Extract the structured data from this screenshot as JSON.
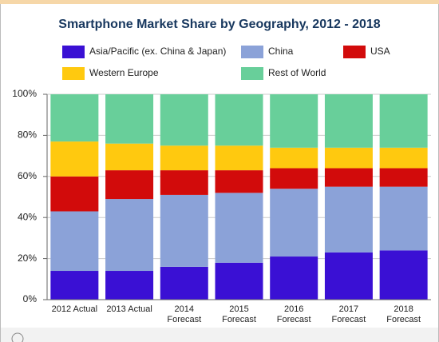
{
  "chart_data": {
    "type": "stacked-bar",
    "title": "Smartphone Market Share by Geography, 2012 - 2018",
    "categories": [
      "2012 Actual",
      "2013 Actual",
      "2014\nForecast",
      "2015\nForecast",
      "2016\nForecast",
      "2017\nForecast",
      "2018\nForecast"
    ],
    "series": [
      {
        "name": "Asia/Pacific (ex. China & Japan)",
        "color": "#3a10d4",
        "values": [
          14,
          14,
          16,
          18,
          21,
          23,
          24
        ]
      },
      {
        "name": "China",
        "color": "#8ba2d8",
        "values": [
          29,
          35,
          35,
          34,
          33,
          32,
          31
        ]
      },
      {
        "name": "USA",
        "color": "#d20b0b",
        "values": [
          17,
          14,
          12,
          11,
          10,
          9,
          9
        ]
      },
      {
        "name": "Western Europe",
        "color": "#ffc90f",
        "values": [
          17,
          13,
          12,
          12,
          10,
          10,
          10
        ]
      },
      {
        "name": "Rest of World",
        "color": "#68cf9a",
        "values": [
          23,
          24,
          25,
          25,
          26,
          26,
          26
        ]
      }
    ],
    "ylim": [
      0,
      100
    ],
    "yticks": [
      {
        "value": 0,
        "label": "0%"
      },
      {
        "value": 20,
        "label": "20%"
      },
      {
        "value": 40,
        "label": "40%"
      },
      {
        "value": 60,
        "label": "60%"
      },
      {
        "value": 80,
        "label": "80%"
      },
      {
        "value": 100,
        "label": "100%"
      }
    ],
    "grid": true
  }
}
